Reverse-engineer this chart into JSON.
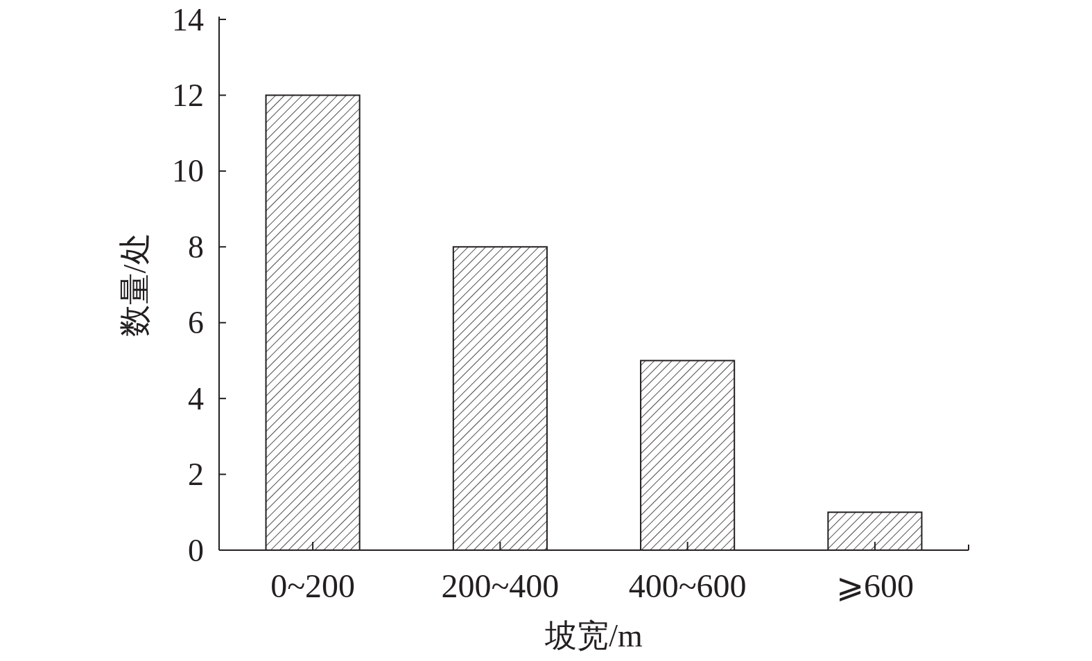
{
  "chart_data": {
    "type": "bar",
    "xlabel": "坡宽/m",
    "ylabel": "数量/处",
    "categories": [
      "0~200",
      "200~400",
      "400~600",
      "⩾600"
    ],
    "values": [
      12,
      8,
      5,
      1
    ],
    "color": "#231f20",
    "ylim": [
      0,
      14
    ],
    "yticks": [
      0,
      2,
      4,
      6,
      8,
      10,
      12,
      14
    ]
  }
}
